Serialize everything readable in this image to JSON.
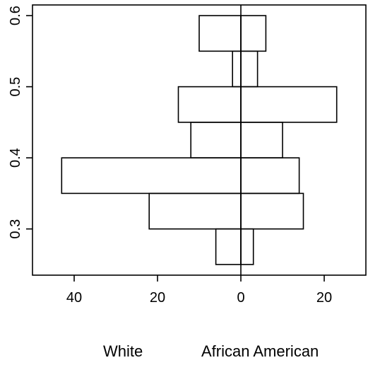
{
  "chart_data": {
    "type": "bar",
    "orientation": "horizontal-back-to-back",
    "title": "",
    "xlabel": "",
    "ylabel": "",
    "groups": [
      "White",
      "African American"
    ],
    "bins": [
      {
        "lower": 0.25,
        "upper": 0.3
      },
      {
        "lower": 0.3,
        "upper": 0.35
      },
      {
        "lower": 0.35,
        "upper": 0.4
      },
      {
        "lower": 0.4,
        "upper": 0.45
      },
      {
        "lower": 0.45,
        "upper": 0.5
      },
      {
        "lower": 0.5,
        "upper": 0.55
      },
      {
        "lower": 0.55,
        "upper": 0.6
      }
    ],
    "series": [
      {
        "name": "White",
        "values": [
          6,
          22,
          43,
          12,
          15,
          2,
          10
        ]
      },
      {
        "name": "African American",
        "values": [
          3,
          15,
          14,
          10,
          23,
          4,
          6
        ]
      }
    ],
    "xlim": [
      -50,
      30
    ],
    "ylim": [
      0.235,
      0.615
    ],
    "x_ticks": [
      -40,
      -20,
      0,
      20
    ],
    "x_tick_labels": [
      "40",
      "20",
      "0",
      "20"
    ],
    "y_ticks": [
      0.3,
      0.4,
      0.5,
      0.6
    ],
    "y_tick_labels": [
      "0.3",
      "0.4",
      "0.5",
      "0.6"
    ],
    "grid": false,
    "legend": "none"
  }
}
